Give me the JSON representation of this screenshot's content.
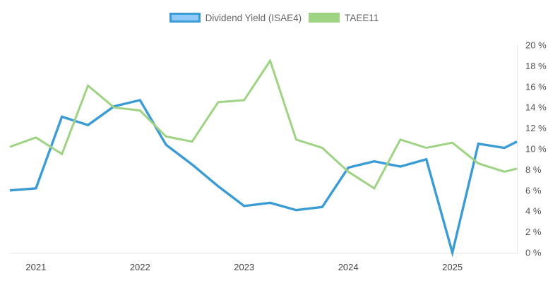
{
  "chart_data": {
    "type": "line",
    "title": "",
    "xlabel": "",
    "ylabel": "",
    "x_ticks": [
      "2021",
      "2022",
      "2023",
      "2024",
      "2025"
    ],
    "y_ticks": [
      "0 %",
      "2 %",
      "4 %",
      "6 %",
      "8 %",
      "10 %",
      "12 %",
      "14 %",
      "16 %",
      "18 %",
      "20 %"
    ],
    "ylim": [
      0,
      20
    ],
    "xlim": [
      2020.75,
      2025.62
    ],
    "y_axis_position": "right",
    "grid": false,
    "legend_position": "top-center",
    "series": [
      {
        "name": "Dividend Yield (ISAE4)",
        "color": "#3a9bd5",
        "x": [
          2020.75,
          2021.0,
          2021.25,
          2021.5,
          2021.75,
          2022.0,
          2022.25,
          2022.5,
          2022.75,
          2023.0,
          2023.25,
          2023.5,
          2023.75,
          2024.0,
          2024.25,
          2024.5,
          2024.75,
          2025.0,
          2025.25,
          2025.5,
          2025.62
        ],
        "values": [
          6.0,
          6.2,
          13.1,
          12.3,
          14.1,
          14.7,
          10.4,
          8.5,
          6.4,
          4.5,
          4.8,
          4.1,
          4.4,
          8.2,
          8.8,
          8.3,
          9.0,
          0.0,
          10.5,
          10.1,
          10.7
        ]
      },
      {
        "name": "TAEE11",
        "color": "#9ed383",
        "x": [
          2020.75,
          2021.0,
          2021.25,
          2021.5,
          2021.75,
          2022.0,
          2022.25,
          2022.5,
          2022.75,
          2023.0,
          2023.25,
          2023.5,
          2023.75,
          2024.0,
          2024.25,
          2024.5,
          2024.75,
          2025.0,
          2025.25,
          2025.5,
          2025.62
        ],
        "values": [
          10.2,
          11.1,
          9.5,
          16.1,
          14.0,
          13.7,
          11.2,
          10.7,
          14.5,
          14.7,
          18.5,
          10.9,
          10.1,
          7.8,
          6.2,
          10.9,
          10.1,
          10.6,
          8.6,
          7.8,
          8.1
        ]
      }
    ]
  }
}
